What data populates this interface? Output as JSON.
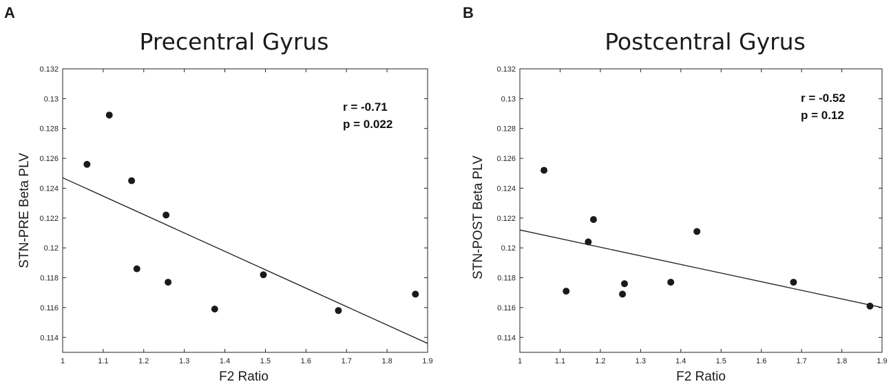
{
  "chart_data": [
    {
      "type": "scatter",
      "panel_label": "A",
      "title": "Precentral Gyrus",
      "xlabel": "F2 Ratio",
      "ylabel": "STN-PRE Beta PLV",
      "xlim": [
        1,
        1.9
      ],
      "ylim": [
        0.113,
        0.132
      ],
      "x_ticks": [
        "1",
        "1.1",
        "1.2",
        "1.3",
        "1.4",
        "1.5",
        "1.6",
        "1.7",
        "1.8",
        "1.9"
      ],
      "y_ticks": [
        "0.114",
        "0.116",
        "0.118",
        "0.12",
        "0.122",
        "0.124",
        "0.126",
        "0.128",
        "0.13",
        "0.132"
      ],
      "points": [
        {
          "x": 1.06,
          "y": 0.1256
        },
        {
          "x": 1.115,
          "y": 0.1289
        },
        {
          "x": 1.17,
          "y": 0.1245
        },
        {
          "x": 1.183,
          "y": 0.1186
        },
        {
          "x": 1.255,
          "y": 0.1222
        },
        {
          "x": 1.26,
          "y": 0.1177
        },
        {
          "x": 1.375,
          "y": 0.1159
        },
        {
          "x": 1.495,
          "y": 0.1182
        },
        {
          "x": 1.68,
          "y": 0.1158
        },
        {
          "x": 1.87,
          "y": 0.1169
        }
      ],
      "fit_line": {
        "x": [
          1,
          1.9
        ],
        "y": [
          0.1247,
          0.1136
        ]
      },
      "stats": [
        "r = -0.71",
        "p = 0.022"
      ],
      "grid": false
    },
    {
      "type": "scatter",
      "panel_label": "B",
      "title": "Postcentral Gyrus",
      "xlabel": "F2 Ratio",
      "ylabel": "STN-POST Beta PLV",
      "xlim": [
        1,
        1.9
      ],
      "ylim": [
        0.113,
        0.132
      ],
      "x_ticks": [
        "1",
        "1.1",
        "1.2",
        "1.3",
        "1.4",
        "1.5",
        "1.6",
        "1.7",
        "1.8",
        "1.9"
      ],
      "y_ticks": [
        "0.114",
        "0.116",
        "0.118",
        "0.12",
        "0.122",
        "0.124",
        "0.126",
        "0.128",
        "0.13",
        "0.132"
      ],
      "points": [
        {
          "x": 1.06,
          "y": 0.1252
        },
        {
          "x": 1.115,
          "y": 0.1171
        },
        {
          "x": 1.17,
          "y": 0.1204
        },
        {
          "x": 1.183,
          "y": 0.1219
        },
        {
          "x": 1.255,
          "y": 0.1169
        },
        {
          "x": 1.26,
          "y": 0.1176
        },
        {
          "x": 1.375,
          "y": 0.1177
        },
        {
          "x": 1.44,
          "y": 0.1211
        },
        {
          "x": 1.68,
          "y": 0.1177
        },
        {
          "x": 1.87,
          "y": 0.1161
        }
      ],
      "fit_line": {
        "x": [
          1,
          1.9
        ],
        "y": [
          0.1212,
          0.116
        ]
      },
      "stats": [
        "r = -0.52",
        "p = 0.12"
      ],
      "grid": false
    }
  ]
}
